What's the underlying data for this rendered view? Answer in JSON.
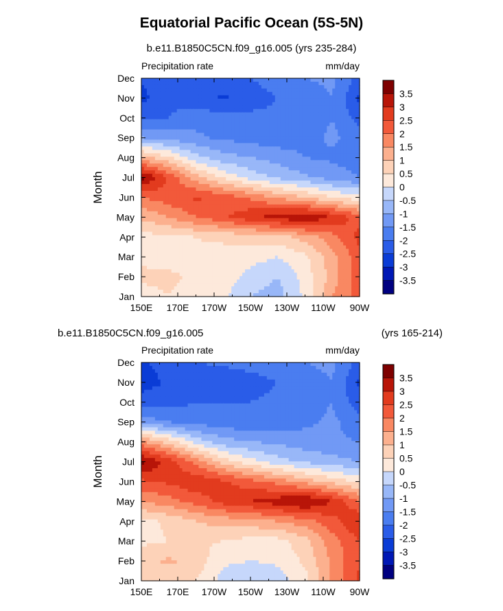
{
  "figure": {
    "title": "Equatorial Pacific Ocean (5S-5N)",
    "panel1_subtitle": "b.e11.B1850C5CN.f09_g16.005 (yrs 235-284)",
    "panel2_subtitle_left": "b.e11.B1850C5CN.f09_g16.005",
    "panel2_subtitle_right": "(yrs 165-214)"
  },
  "chart_data": [
    {
      "type": "heatmap",
      "title": "b.e11.B1850C5CN.f09_g16.005 (yrs 235-284)",
      "left_label": "Precipitation rate",
      "right_label": "mm/day",
      "xlabel": "",
      "ylabel": "Month",
      "x_tick_labels": [
        "150E",
        "170E",
        "170W",
        "150W",
        "130W",
        "110W",
        "90W"
      ],
      "x_lon": [
        150,
        170,
        190,
        210,
        230,
        250,
        270
      ],
      "xlim": [
        150,
        270
      ],
      "y_tick_labels": [
        "Jan",
        "Feb",
        "Mar",
        "Apr",
        "May",
        "Jun",
        "Jul",
        "Aug",
        "Sep",
        "Oct",
        "Nov",
        "Dec"
      ],
      "colorbar": {
        "levels": [
          -3.5,
          -3,
          -2.5,
          -2,
          -1.5,
          -1,
          -0.5,
          0,
          0.5,
          1,
          1.5,
          2,
          2.5,
          3,
          3.5
        ],
        "labels": [
          "-3.5",
          "-3",
          "-2.5",
          "-2",
          "-1.5",
          "-1",
          "-0.5",
          "0",
          "0.5",
          "1",
          "1.5",
          "2",
          "2.5",
          "3",
          "3.5"
        ],
        "colors": [
          "#000080",
          "#0018B5",
          "#0A3CD6",
          "#2A5CE8",
          "#4A7DF0",
          "#7199F5",
          "#98B7F8",
          "#C6D7FB",
          "#FDE9DB",
          "#FDD2B8",
          "#FCB08E",
          "#F98862",
          "#F2593A",
          "#E23B1E",
          "#B81508",
          "#7E0000"
        ]
      },
      "values_mm_per_day": [
        [
          0.3,
          0.5,
          0.3,
          0.1,
          -0.5,
          -0.7,
          0.1,
          1.5,
          2.2
        ],
        [
          0.6,
          0.6,
          0.4,
          0.3,
          -0.2,
          -0.5,
          0.2,
          1.2,
          2.4
        ],
        [
          0.4,
          0.3,
          0.4,
          0.3,
          0.2,
          0.0,
          0.4,
          1.3,
          2.3
        ],
        [
          0.3,
          0.4,
          0.5,
          0.6,
          0.7,
          0.8,
          1.2,
          1.8,
          2.7
        ],
        [
          1.1,
          1.5,
          2.0,
          2.4,
          2.9,
          3.2,
          3.5,
          3.0,
          2.2
        ],
        [
          2.0,
          2.3,
          2.6,
          2.3,
          1.9,
          1.4,
          1.0,
          0.5,
          0.2
        ],
        [
          3.7,
          2.4,
          1.2,
          0.4,
          -0.2,
          -0.6,
          -0.9,
          -1.2,
          -1.5
        ],
        [
          1.2,
          0.6,
          -0.3,
          -0.8,
          -1.0,
          -1.2,
          -1.5,
          -1.6,
          -1.8
        ],
        [
          -1.0,
          -1.2,
          -1.4,
          -1.6,
          -1.7,
          -1.8,
          -1.7,
          -1.4,
          -1.7
        ],
        [
          -2.0,
          -2.0,
          -1.7,
          -1.8,
          -1.9,
          -1.9,
          -1.8,
          -1.5,
          -2.2
        ],
        [
          -2.7,
          -2.1,
          -2.3,
          -2.6,
          -2.2,
          -2.0,
          -1.8,
          -1.5,
          -2.6
        ],
        [
          -2.4,
          -2.0,
          -2.1,
          -2.0,
          -2.0,
          -1.8,
          -1.5,
          -1.4,
          -2.2
        ]
      ]
    },
    {
      "type": "heatmap",
      "title": "b.e11.B1850C5CN.f09_g16.005 (yrs 165-214)",
      "left_label": "Precipitation rate",
      "right_label": "mm/day",
      "xlabel": "",
      "ylabel": "Month",
      "x_tick_labels": [
        "150E",
        "170E",
        "170W",
        "150W",
        "130W",
        "110W",
        "90W"
      ],
      "x_lon": [
        150,
        170,
        190,
        210,
        230,
        250,
        270
      ],
      "xlim": [
        150,
        270
      ],
      "y_tick_labels": [
        "Jan",
        "Feb",
        "Mar",
        "Apr",
        "May",
        "Jun",
        "Jul",
        "Aug",
        "Sep",
        "Oct",
        "Nov",
        "Dec"
      ],
      "colorbar": {
        "levels": [
          -3.5,
          -3,
          -2.5,
          -2,
          -1.5,
          -1,
          -0.5,
          0,
          0.5,
          1,
          1.5,
          2,
          2.5,
          3,
          3.5
        ],
        "labels": [
          "-3.5",
          "-3",
          "-2.5",
          "-2",
          "-1.5",
          "-1",
          "-0.5",
          "0",
          "0.5",
          "1",
          "1.5",
          "2",
          "2.5",
          "3",
          "3.5"
        ],
        "colors": [
          "#000080",
          "#0018B5",
          "#0A3CD6",
          "#2A5CE8",
          "#4A7DF0",
          "#7199F5",
          "#98B7F8",
          "#C6D7FB",
          "#FDE9DB",
          "#FDD2B8",
          "#FCB08E",
          "#F98862",
          "#F2593A",
          "#E23B1E",
          "#B81508",
          "#7E0000"
        ]
      },
      "values_mm_per_day": [
        [
          0.5,
          0.6,
          0.5,
          -0.2,
          -0.5,
          -0.3,
          0.3,
          1.6,
          2.6
        ],
        [
          0.8,
          1.1,
          0.8,
          0.1,
          0.0,
          0.1,
          0.6,
          1.6,
          2.5
        ],
        [
          0.4,
          0.5,
          0.6,
          0.5,
          0.3,
          0.3,
          0.8,
          1.8,
          2.5
        ],
        [
          0.3,
          0.6,
          1.0,
          1.2,
          1.3,
          1.5,
          1.8,
          2.3,
          3.0
        ],
        [
          1.5,
          1.8,
          2.2,
          2.7,
          3.0,
          3.3,
          3.6,
          3.0,
          2.0
        ],
        [
          2.4,
          2.6,
          2.9,
          2.6,
          2.2,
          1.8,
          1.3,
          0.8,
          0.4
        ],
        [
          3.7,
          2.8,
          1.8,
          0.8,
          0.2,
          -0.3,
          -0.6,
          -0.8,
          -1.0
        ],
        [
          1.6,
          0.8,
          -0.2,
          -0.8,
          -1.0,
          -1.1,
          -1.3,
          -1.4,
          -1.5
        ],
        [
          -1.2,
          -1.5,
          -1.7,
          -1.8,
          -1.9,
          -1.8,
          -1.6,
          -1.4,
          -1.8
        ],
        [
          -2.2,
          -2.2,
          -2.0,
          -2.0,
          -2.0,
          -1.9,
          -1.7,
          -1.5,
          -2.3
        ],
        [
          -2.8,
          -2.4,
          -2.5,
          -2.4,
          -2.2,
          -2.0,
          -1.7,
          -1.5,
          -2.6
        ],
        [
          -2.6,
          -2.2,
          -2.0,
          -1.9,
          -1.8,
          -1.7,
          -1.5,
          -1.4,
          -2.2
        ]
      ]
    }
  ]
}
